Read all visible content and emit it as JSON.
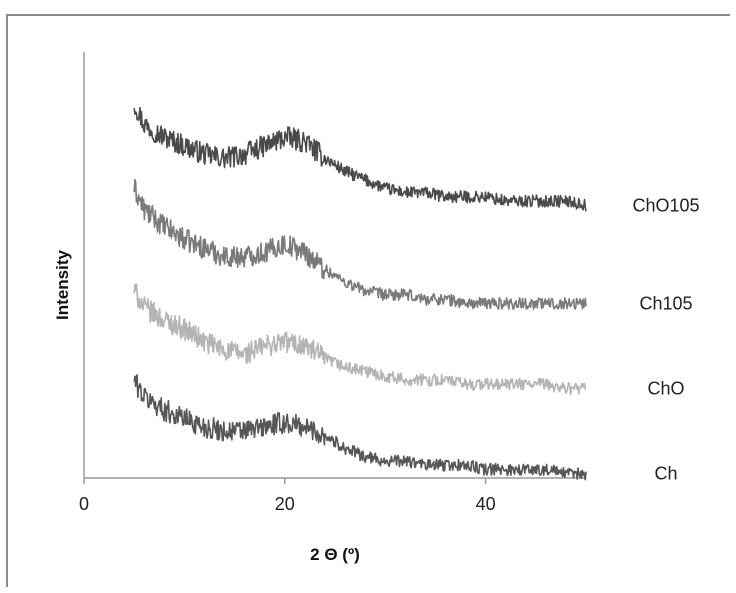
{
  "chart_data": {
    "type": "line",
    "xlabel": "2 Θ (º)",
    "ylabel": "Intensity",
    "xlim": [
      0,
      50
    ],
    "ylim": [
      0,
      100
    ],
    "xticks": [
      "0",
      "20",
      "40"
    ],
    "xtick_values": [
      0,
      20,
      40
    ],
    "grid": false,
    "legend": "right",
    "series": [
      {
        "name": "ChO105",
        "color": "#4a4a4a",
        "x": [
          5,
          6,
          8,
          10,
          12,
          14,
          16,
          18,
          20,
          22,
          24,
          26,
          28,
          30,
          32,
          34,
          36,
          38,
          40,
          42,
          44,
          46,
          48,
          50
        ],
        "y": [
          88,
          83,
          80,
          78,
          76,
          75,
          76,
          78,
          80,
          79,
          75,
          72,
          70,
          68,
          67,
          67,
          66,
          66,
          66,
          65,
          65,
          65,
          65,
          64
        ]
      },
      {
        "name": "Ch105",
        "color": "#7a7a7a",
        "x": [
          5,
          6,
          8,
          10,
          12,
          14,
          16,
          18,
          20,
          22,
          24,
          26,
          28,
          30,
          32,
          34,
          36,
          38,
          40,
          42,
          44,
          46,
          48,
          50
        ],
        "y": [
          68,
          63,
          59,
          56,
          54,
          52,
          52,
          53,
          55,
          53,
          49,
          46,
          44,
          43,
          43,
          42,
          42,
          41,
          41,
          41,
          41,
          41,
          41,
          41
        ]
      },
      {
        "name": "ChO",
        "color": "#b4b4b4",
        "x": [
          5,
          6,
          8,
          10,
          12,
          14,
          16,
          18,
          20,
          22,
          24,
          26,
          28,
          30,
          32,
          34,
          36,
          38,
          40,
          42,
          44,
          46,
          48,
          50
        ],
        "y": [
          44,
          40,
          37,
          35,
          32,
          30,
          29,
          31,
          32,
          31,
          28,
          26,
          25,
          24,
          23,
          23,
          23,
          22,
          22,
          22,
          22,
          22,
          21,
          21
        ]
      },
      {
        "name": "Ch",
        "color": "#565656",
        "x": [
          5,
          6,
          8,
          10,
          12,
          14,
          16,
          18,
          20,
          22,
          24,
          26,
          28,
          30,
          32,
          34,
          36,
          38,
          40,
          42,
          44,
          46,
          48,
          50
        ],
        "y": [
          23,
          19,
          16,
          14,
          12,
          11,
          11,
          12,
          13,
          12,
          10,
          7,
          5,
          4,
          4,
          3,
          3,
          3,
          2,
          2,
          2,
          2,
          1,
          1
        ]
      }
    ]
  }
}
